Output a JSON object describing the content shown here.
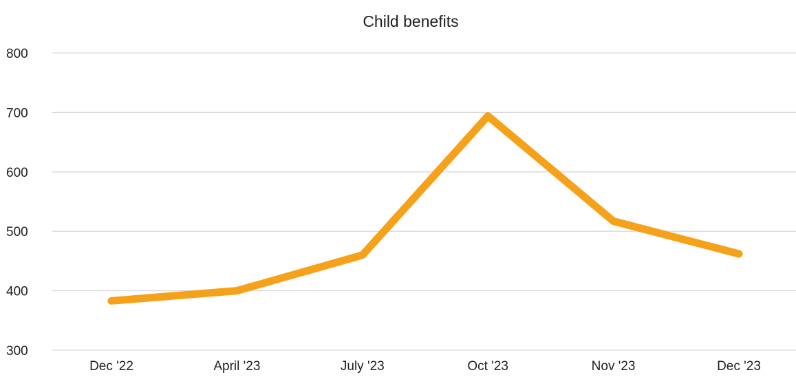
{
  "chart_data": {
    "type": "line",
    "title": "Child benefits",
    "xlabel": "",
    "ylabel": "",
    "categories": [
      "Dec '22",
      "April '23",
      "July '23",
      "Oct '23",
      "Nov '23",
      "Dec '23"
    ],
    "series": [
      {
        "values": [
          383,
          400,
          460,
          694,
          517,
          462
        ],
        "color": "#F5A11A"
      }
    ],
    "ylim": [
      300,
      800
    ],
    "yticks": [
      300,
      400,
      500,
      600,
      700,
      800
    ],
    "grid": true,
    "legend": "none"
  }
}
